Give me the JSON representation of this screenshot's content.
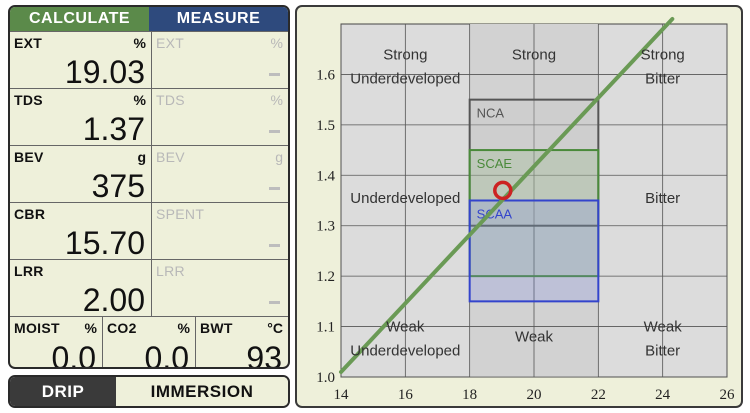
{
  "tabs": {
    "calculate": "CALCULATE",
    "measure": "MEASURE"
  },
  "calculate": [
    {
      "label": "EXT",
      "unit": "%",
      "value": "19.03"
    },
    {
      "label": "TDS",
      "unit": "%",
      "value": "1.37"
    },
    {
      "label": "BEV",
      "unit": "g",
      "value": "375"
    },
    {
      "label": "CBR",
      "unit": "",
      "value": "15.70"
    },
    {
      "label": "LRR",
      "unit": "",
      "value": "2.00"
    }
  ],
  "measure": [
    {
      "label": "EXT",
      "unit": "%"
    },
    {
      "label": "TDS",
      "unit": "%"
    },
    {
      "label": "BEV",
      "unit": "g"
    },
    {
      "label": "SPENT",
      "unit": ""
    },
    {
      "label": "LRR",
      "unit": ""
    }
  ],
  "bottom_row": [
    {
      "label": "MOIST",
      "unit": "%",
      "value": "0.0"
    },
    {
      "label": "CO2",
      "unit": "%",
      "value": "0.0"
    },
    {
      "label": "BWT",
      "unit": "°C",
      "value": "93"
    }
  ],
  "mode": {
    "drip": "DRIP",
    "immersion": "IMMERSION",
    "selected": "drip"
  },
  "colors": {
    "calc_tab": "#5b8a4a",
    "measure_tab": "#2e4a7d",
    "panel_bg": "#eef0da",
    "nca": "#555555",
    "scae": "#4a8a3a",
    "scaa": "#3344cc",
    "brew_line": "#6a9a55",
    "marker": "#cc2222"
  },
  "chart_data": {
    "type": "scatter",
    "title": "",
    "xlabel": "",
    "ylabel": "",
    "xlim": [
      14,
      26
    ],
    "ylim": [
      1.0,
      1.7
    ],
    "xticks": [
      "14",
      "16",
      "18",
      "20",
      "22",
      "24",
      "26"
    ],
    "yticks": [
      "1.0",
      "1.1",
      "1.2",
      "1.3",
      "1.4",
      "1.5",
      "1.6"
    ],
    "grid": true,
    "brew_line": {
      "x": [
        14,
        24.3
      ],
      "y": [
        1.01,
        1.71
      ]
    },
    "point": {
      "x": 19.03,
      "y": 1.37
    },
    "boxes": [
      {
        "name": "NCA",
        "x": [
          18,
          22
        ],
        "y": [
          1.3,
          1.55
        ]
      },
      {
        "name": "SCAE",
        "x": [
          18,
          22
        ],
        "y": [
          1.2,
          1.45
        ]
      },
      {
        "name": "SCAA",
        "x": [
          18,
          22
        ],
        "y": [
          1.15,
          1.35
        ]
      }
    ],
    "zones": [
      {
        "line1": "Strong",
        "line2": "Underdeveloped",
        "x": 16,
        "y": 1.63
      },
      {
        "line1": "Strong",
        "line2": "",
        "x": 20,
        "y": 1.63
      },
      {
        "line1": "Strong",
        "line2": "Bitter",
        "x": 24,
        "y": 1.63
      },
      {
        "line1": "Underdeveloped",
        "line2": "",
        "x": 16,
        "y": 1.345
      },
      {
        "line1": "Bitter",
        "line2": "",
        "x": 24,
        "y": 1.345
      },
      {
        "line1": "Weak",
        "line2": "Underdeveloped",
        "x": 16,
        "y": 1.09
      },
      {
        "line1": "Weak",
        "line2": "",
        "x": 20,
        "y": 1.07
      },
      {
        "line1": "Weak",
        "line2": "Bitter",
        "x": 24,
        "y": 1.09
      }
    ]
  }
}
